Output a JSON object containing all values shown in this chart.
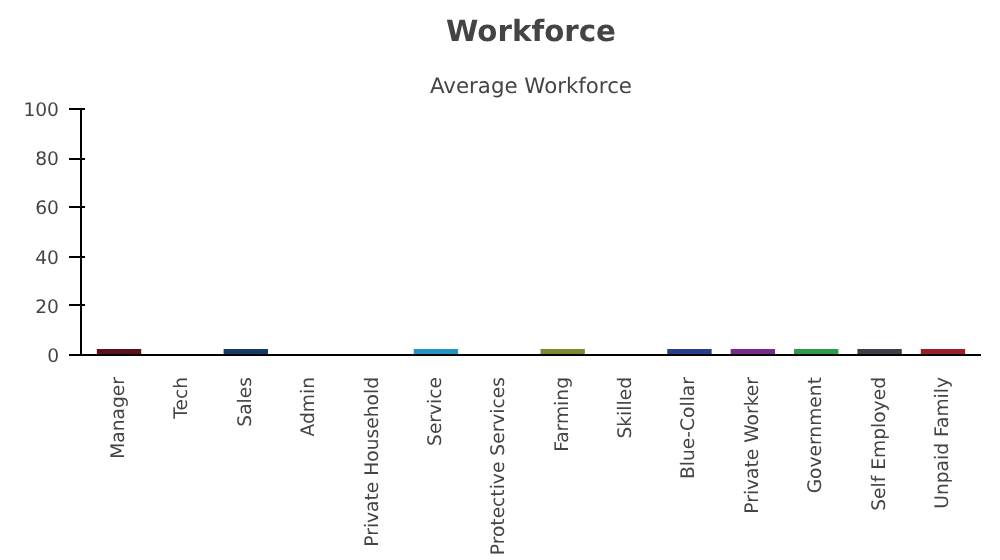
{
  "chart_data": {
    "type": "bar",
    "title": "Workforce",
    "subtitle": "Average Workforce",
    "categories": [
      "Manager",
      "Tech",
      "Sales",
      "Admin",
      "Private Household",
      "Service",
      "Protective Services",
      "Farming",
      "Skilled",
      "Blue-Collar",
      "Private Worker",
      "Government",
      "Self Employed",
      "Unpaid Family"
    ],
    "values": [
      0,
      null,
      0,
      null,
      null,
      0,
      null,
      0,
      null,
      0,
      0,
      0,
      0,
      0
    ],
    "colors": [
      "#5c1018",
      null,
      "#143a66",
      null,
      null,
      "#2196c4",
      null,
      "#7a8a32",
      null,
      "#283e8c",
      "#7a2a8c",
      "#2e9a4a",
      "#3c3e48",
      "#9c1e2a"
    ],
    "ylim": [
      0,
      100
    ],
    "yticks": [
      0,
      20,
      40,
      60,
      80,
      100
    ],
    "grid": false
  }
}
